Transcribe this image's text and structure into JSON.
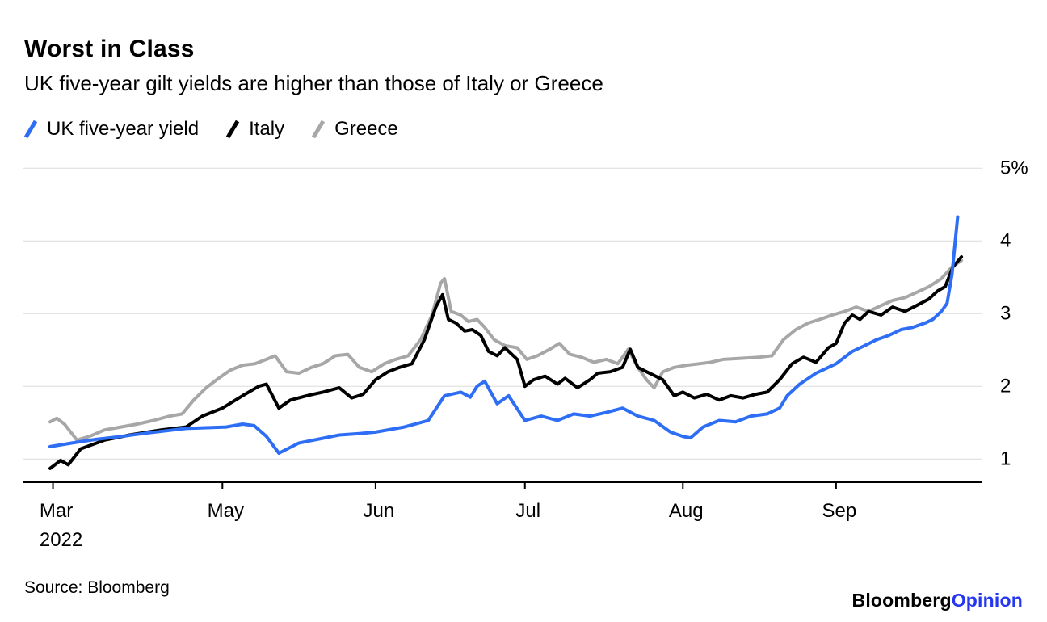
{
  "page": {
    "source": "Source: Bloomberg",
    "brand": {
      "name": "Bloomberg",
      "suffix": "Opinion"
    }
  },
  "chart_data": {
    "type": "line",
    "title": "Worst in Class",
    "subtitle": "UK five-year gilt yields are higher than those of Italy or Greece",
    "x_unit": "fraction of x-axis, Mar 2022 through early Oct 2022",
    "x_ticks": [
      {
        "label": "Mar",
        "sublabel": "2022",
        "f": 0.03
      },
      {
        "label": "May",
        "f": 0.207
      },
      {
        "label": "Jun",
        "f": 0.367
      },
      {
        "label": "Jul",
        "f": 0.523
      },
      {
        "label": "Aug",
        "f": 0.688
      },
      {
        "label": "Sep",
        "f": 0.848
      }
    ],
    "ylim": [
      0.68,
      5.1
    ],
    "yticks": [
      1,
      2,
      3,
      4,
      5
    ],
    "ytick_labels": [
      "1",
      "2",
      "3",
      "4",
      "5%"
    ],
    "ylabel_unit": "%",
    "grid": "horizontal-only",
    "legend_position": "top-left",
    "series": [
      {
        "name": "UK five-year yield",
        "color": "#2d6ef5",
        "points": [
          [
            0.027,
            1.17
          ],
          [
            0.05,
            1.22
          ],
          [
            0.075,
            1.27
          ],
          [
            0.101,
            1.31
          ],
          [
            0.13,
            1.36
          ],
          [
            0.169,
            1.42
          ],
          [
            0.19,
            1.43
          ],
          [
            0.211,
            1.44
          ],
          [
            0.228,
            1.48
          ],
          [
            0.24,
            1.46
          ],
          [
            0.253,
            1.31
          ],
          [
            0.266,
            1.08
          ],
          [
            0.287,
            1.22
          ],
          [
            0.31,
            1.28
          ],
          [
            0.329,
            1.33
          ],
          [
            0.35,
            1.35
          ],
          [
            0.367,
            1.37
          ],
          [
            0.397,
            1.44
          ],
          [
            0.422,
            1.53
          ],
          [
            0.439,
            1.87
          ],
          [
            0.456,
            1.92
          ],
          [
            0.466,
            1.85
          ],
          [
            0.473,
            2.0
          ],
          [
            0.481,
            2.07
          ],
          [
            0.494,
            1.76
          ],
          [
            0.506,
            1.87
          ],
          [
            0.523,
            1.53
          ],
          [
            0.54,
            1.59
          ],
          [
            0.557,
            1.53
          ],
          [
            0.574,
            1.62
          ],
          [
            0.591,
            1.59
          ],
          [
            0.608,
            1.64
          ],
          [
            0.625,
            1.7
          ],
          [
            0.641,
            1.59
          ],
          [
            0.658,
            1.53
          ],
          [
            0.675,
            1.37
          ],
          [
            0.688,
            1.31
          ],
          [
            0.696,
            1.29
          ],
          [
            0.709,
            1.44
          ],
          [
            0.726,
            1.53
          ],
          [
            0.743,
            1.51
          ],
          [
            0.759,
            1.59
          ],
          [
            0.776,
            1.62
          ],
          [
            0.789,
            1.7
          ],
          [
            0.797,
            1.87
          ],
          [
            0.81,
            2.03
          ],
          [
            0.827,
            2.18
          ],
          [
            0.848,
            2.31
          ],
          [
            0.865,
            2.48
          ],
          [
            0.878,
            2.56
          ],
          [
            0.89,
            2.64
          ],
          [
            0.903,
            2.7
          ],
          [
            0.916,
            2.78
          ],
          [
            0.928,
            2.81
          ],
          [
            0.941,
            2.87
          ],
          [
            0.949,
            2.92
          ],
          [
            0.958,
            3.03
          ],
          [
            0.964,
            3.14
          ],
          [
            0.969,
            3.53
          ],
          [
            0.975,
            4.33
          ]
        ]
      },
      {
        "name": "Italy",
        "color": "#000000",
        "points": [
          [
            0.027,
            0.87
          ],
          [
            0.038,
            0.98
          ],
          [
            0.046,
            0.92
          ],
          [
            0.059,
            1.14
          ],
          [
            0.084,
            1.26
          ],
          [
            0.11,
            1.33
          ],
          [
            0.143,
            1.4
          ],
          [
            0.169,
            1.44
          ],
          [
            0.186,
            1.59
          ],
          [
            0.207,
            1.7
          ],
          [
            0.228,
            1.87
          ],
          [
            0.245,
            2.0
          ],
          [
            0.253,
            2.03
          ],
          [
            0.266,
            1.7
          ],
          [
            0.278,
            1.81
          ],
          [
            0.295,
            1.87
          ],
          [
            0.312,
            1.92
          ],
          [
            0.329,
            1.98
          ],
          [
            0.342,
            1.84
          ],
          [
            0.354,
            1.89
          ],
          [
            0.367,
            2.09
          ],
          [
            0.38,
            2.2
          ],
          [
            0.392,
            2.26
          ],
          [
            0.405,
            2.31
          ],
          [
            0.418,
            2.64
          ],
          [
            0.43,
            3.09
          ],
          [
            0.437,
            3.26
          ],
          [
            0.443,
            2.92
          ],
          [
            0.451,
            2.87
          ],
          [
            0.46,
            2.76
          ],
          [
            0.468,
            2.78
          ],
          [
            0.477,
            2.7
          ],
          [
            0.485,
            2.48
          ],
          [
            0.494,
            2.42
          ],
          [
            0.502,
            2.53
          ],
          [
            0.515,
            2.37
          ],
          [
            0.523,
            2.0
          ],
          [
            0.532,
            2.09
          ],
          [
            0.544,
            2.14
          ],
          [
            0.557,
            2.03
          ],
          [
            0.565,
            2.11
          ],
          [
            0.578,
            1.98
          ],
          [
            0.591,
            2.09
          ],
          [
            0.599,
            2.18
          ],
          [
            0.612,
            2.2
          ],
          [
            0.625,
            2.26
          ],
          [
            0.633,
            2.51
          ],
          [
            0.641,
            2.26
          ],
          [
            0.65,
            2.2
          ],
          [
            0.667,
            2.09
          ],
          [
            0.679,
            1.87
          ],
          [
            0.688,
            1.92
          ],
          [
            0.7,
            1.84
          ],
          [
            0.713,
            1.89
          ],
          [
            0.726,
            1.81
          ],
          [
            0.738,
            1.87
          ],
          [
            0.751,
            1.84
          ],
          [
            0.764,
            1.89
          ],
          [
            0.776,
            1.92
          ],
          [
            0.789,
            2.09
          ],
          [
            0.802,
            2.31
          ],
          [
            0.814,
            2.4
          ],
          [
            0.827,
            2.33
          ],
          [
            0.84,
            2.53
          ],
          [
            0.848,
            2.59
          ],
          [
            0.857,
            2.87
          ],
          [
            0.865,
            2.98
          ],
          [
            0.873,
            2.92
          ],
          [
            0.882,
            3.03
          ],
          [
            0.895,
            2.98
          ],
          [
            0.907,
            3.09
          ],
          [
            0.92,
            3.03
          ],
          [
            0.932,
            3.11
          ],
          [
            0.945,
            3.2
          ],
          [
            0.954,
            3.31
          ],
          [
            0.962,
            3.37
          ],
          [
            0.97,
            3.64
          ],
          [
            0.979,
            3.78
          ]
        ]
      },
      {
        "name": "Greece",
        "color": "#a7a7a7",
        "points": [
          [
            0.027,
            1.51
          ],
          [
            0.034,
            1.56
          ],
          [
            0.042,
            1.48
          ],
          [
            0.055,
            1.26
          ],
          [
            0.068,
            1.31
          ],
          [
            0.084,
            1.4
          ],
          [
            0.101,
            1.44
          ],
          [
            0.118,
            1.48
          ],
          [
            0.135,
            1.53
          ],
          [
            0.152,
            1.59
          ],
          [
            0.165,
            1.62
          ],
          [
            0.177,
            1.81
          ],
          [
            0.19,
            1.98
          ],
          [
            0.203,
            2.11
          ],
          [
            0.215,
            2.22
          ],
          [
            0.228,
            2.29
          ],
          [
            0.241,
            2.31
          ],
          [
            0.253,
            2.37
          ],
          [
            0.262,
            2.42
          ],
          [
            0.274,
            2.2
          ],
          [
            0.287,
            2.18
          ],
          [
            0.3,
            2.26
          ],
          [
            0.312,
            2.31
          ],
          [
            0.325,
            2.42
          ],
          [
            0.338,
            2.44
          ],
          [
            0.35,
            2.26
          ],
          [
            0.363,
            2.2
          ],
          [
            0.376,
            2.31
          ],
          [
            0.388,
            2.37
          ],
          [
            0.401,
            2.42
          ],
          [
            0.414,
            2.64
          ],
          [
            0.426,
            2.98
          ],
          [
            0.435,
            3.42
          ],
          [
            0.439,
            3.48
          ],
          [
            0.446,
            3.03
          ],
          [
            0.456,
            2.98
          ],
          [
            0.464,
            2.89
          ],
          [
            0.473,
            2.92
          ],
          [
            0.481,
            2.81
          ],
          [
            0.491,
            2.64
          ],
          [
            0.502,
            2.56
          ],
          [
            0.515,
            2.53
          ],
          [
            0.525,
            2.37
          ],
          [
            0.536,
            2.42
          ],
          [
            0.549,
            2.51
          ],
          [
            0.559,
            2.59
          ],
          [
            0.57,
            2.44
          ],
          [
            0.582,
            2.4
          ],
          [
            0.595,
            2.33
          ],
          [
            0.608,
            2.37
          ],
          [
            0.62,
            2.31
          ],
          [
            0.631,
            2.51
          ],
          [
            0.641,
            2.26
          ],
          [
            0.65,
            2.09
          ],
          [
            0.658,
            1.98
          ],
          [
            0.667,
            2.2
          ],
          [
            0.679,
            2.26
          ],
          [
            0.692,
            2.29
          ],
          [
            0.705,
            2.31
          ],
          [
            0.717,
            2.33
          ],
          [
            0.73,
            2.37
          ],
          [
            0.743,
            2.38
          ],
          [
            0.755,
            2.39
          ],
          [
            0.768,
            2.4
          ],
          [
            0.781,
            2.42
          ],
          [
            0.793,
            2.64
          ],
          [
            0.806,
            2.78
          ],
          [
            0.819,
            2.87
          ],
          [
            0.831,
            2.92
          ],
          [
            0.844,
            2.98
          ],
          [
            0.857,
            3.03
          ],
          [
            0.869,
            3.09
          ],
          [
            0.882,
            3.03
          ],
          [
            0.895,
            3.11
          ],
          [
            0.907,
            3.18
          ],
          [
            0.92,
            3.22
          ],
          [
            0.932,
            3.29
          ],
          [
            0.945,
            3.37
          ],
          [
            0.958,
            3.48
          ],
          [
            0.969,
            3.64
          ],
          [
            0.979,
            3.73
          ]
        ]
      }
    ]
  }
}
